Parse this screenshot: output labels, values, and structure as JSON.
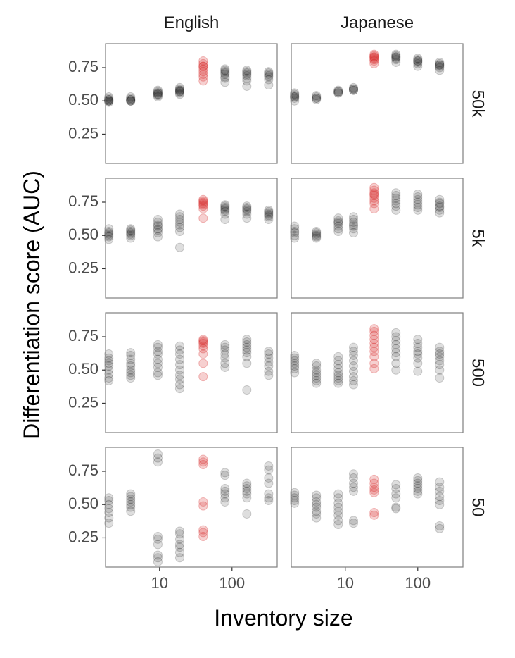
{
  "chart_data": {
    "type": "scatter",
    "xlabel": "Inventory size",
    "ylabel": "Differentiation score (AUC)",
    "x_scale": "log",
    "xlim": [
      1.8,
      420
    ],
    "ylim": [
      0.03,
      0.93
    ],
    "x_ticks": [
      10,
      100
    ],
    "x_tick_labels": [
      "10",
      "100"
    ],
    "y_ticks": [
      0.25,
      0.5,
      0.75
    ],
    "y_tick_labels": [
      "0.25",
      "0.50",
      "0.75"
    ],
    "columns": [
      "English",
      "Japanese"
    ],
    "rows": [
      "50k",
      "5k",
      "500",
      "50"
    ],
    "grid": false,
    "colors": {
      "highlight": "#d62728",
      "point": "#000000",
      "panel_border": "#7f7f7f"
    },
    "panels": [
      {
        "column": "English",
        "row": "50k",
        "points": [
          {
            "x": 2,
            "y": [
              0.49,
              0.5,
              0.51,
              0.52,
              0.53,
              0.5,
              0.51,
              0.5
            ]
          },
          {
            "x": 4,
            "y": [
              0.5,
              0.51,
              0.52,
              0.5,
              0.51,
              0.53,
              0.5
            ]
          },
          {
            "x": 9.5,
            "y": [
              0.54,
              0.55,
              0.56,
              0.57,
              0.58,
              0.56,
              0.55,
              0.53
            ]
          },
          {
            "x": 19,
            "y": [
              0.56,
              0.57,
              0.58,
              0.59,
              0.6,
              0.58,
              0.57,
              0.55
            ]
          },
          {
            "x": 40,
            "y": [
              0.65,
              0.68,
              0.7,
              0.72,
              0.74,
              0.76,
              0.78,
              0.8,
              0.76
            ],
            "highlight": true
          },
          {
            "x": 80,
            "y": [
              0.64,
              0.67,
              0.7,
              0.72,
              0.73,
              0.74,
              0.71,
              0.68
            ]
          },
          {
            "x": 160,
            "y": [
              0.61,
              0.65,
              0.69,
              0.71,
              0.72,
              0.73,
              0.7,
              0.67
            ]
          },
          {
            "x": 320,
            "y": [
              0.62,
              0.66,
              0.69,
              0.7,
              0.71,
              0.72,
              0.68
            ]
          }
        ]
      },
      {
        "column": "Japanese",
        "row": "50k",
        "points": [
          {
            "x": 2,
            "y": [
              0.5,
              0.52,
              0.53,
              0.54,
              0.55,
              0.56,
              0.53
            ]
          },
          {
            "x": 4,
            "y": [
              0.51,
              0.52,
              0.53,
              0.54,
              0.52
            ]
          },
          {
            "x": 8,
            "y": [
              0.56,
              0.57,
              0.58,
              0.57,
              0.56
            ]
          },
          {
            "x": 13,
            "y": [
              0.58,
              0.59,
              0.6,
              0.59,
              0.58
            ]
          },
          {
            "x": 25,
            "y": [
              0.78,
              0.8,
              0.81,
              0.82,
              0.83,
              0.84,
              0.85,
              0.83
            ],
            "highlight": true
          },
          {
            "x": 50,
            "y": [
              0.79,
              0.81,
              0.82,
              0.83,
              0.84,
              0.85,
              0.83
            ]
          },
          {
            "x": 100,
            "y": [
              0.76,
              0.78,
              0.79,
              0.8,
              0.81,
              0.82,
              0.8
            ]
          },
          {
            "x": 200,
            "y": [
              0.73,
              0.75,
              0.76,
              0.77,
              0.78,
              0.79,
              0.77
            ]
          }
        ]
      },
      {
        "column": "English",
        "row": "5k",
        "points": [
          {
            "x": 2,
            "y": [
              0.47,
              0.49,
              0.5,
              0.51,
              0.52,
              0.53,
              0.55
            ]
          },
          {
            "x": 4,
            "y": [
              0.48,
              0.5,
              0.51,
              0.52,
              0.53,
              0.54,
              0.55
            ]
          },
          {
            "x": 9.5,
            "y": [
              0.49,
              0.52,
              0.54,
              0.55,
              0.57,
              0.58,
              0.6,
              0.62
            ]
          },
          {
            "x": 19,
            "y": [
              0.41,
              0.53,
              0.56,
              0.58,
              0.6,
              0.62,
              0.64,
              0.66
            ]
          },
          {
            "x": 40,
            "y": [
              0.63,
              0.7,
              0.72,
              0.73,
              0.74,
              0.75,
              0.76,
              0.77
            ],
            "highlight": true
          },
          {
            "x": 80,
            "y": [
              0.62,
              0.66,
              0.68,
              0.69,
              0.7,
              0.71,
              0.72,
              0.73
            ]
          },
          {
            "x": 160,
            "y": [
              0.63,
              0.66,
              0.68,
              0.69,
              0.7,
              0.71,
              0.72
            ]
          },
          {
            "x": 320,
            "y": [
              0.62,
              0.64,
              0.65,
              0.66,
              0.67,
              0.68,
              0.69
            ]
          }
        ]
      },
      {
        "column": "Japanese",
        "row": "5k",
        "points": [
          {
            "x": 2,
            "y": [
              0.48,
              0.5,
              0.52,
              0.53,
              0.55,
              0.57
            ]
          },
          {
            "x": 4,
            "y": [
              0.48,
              0.49,
              0.5,
              0.51,
              0.52,
              0.53
            ]
          },
          {
            "x": 8,
            "y": [
              0.53,
              0.55,
              0.57,
              0.59,
              0.6,
              0.61,
              0.63
            ]
          },
          {
            "x": 13,
            "y": [
              0.52,
              0.55,
              0.57,
              0.58,
              0.6,
              0.62,
              0.64
            ]
          },
          {
            "x": 25,
            "y": [
              0.7,
              0.74,
              0.76,
              0.78,
              0.8,
              0.81,
              0.82,
              0.84,
              0.86
            ],
            "highlight": true
          },
          {
            "x": 50,
            "y": [
              0.69,
              0.72,
              0.74,
              0.76,
              0.78,
              0.8,
              0.82
            ]
          },
          {
            "x": 100,
            "y": [
              0.69,
              0.71,
              0.73,
              0.75,
              0.77,
              0.79,
              0.81
            ]
          },
          {
            "x": 200,
            "y": [
              0.67,
              0.69,
              0.71,
              0.72,
              0.74,
              0.75,
              0.77
            ]
          }
        ]
      },
      {
        "column": "English",
        "row": "500",
        "points": [
          {
            "x": 2,
            "y": [
              0.42,
              0.44,
              0.47,
              0.5,
              0.53,
              0.55,
              0.57,
              0.59,
              0.62
            ]
          },
          {
            "x": 4,
            "y": [
              0.44,
              0.46,
              0.48,
              0.5,
              0.53,
              0.55,
              0.58,
              0.61,
              0.63
            ]
          },
          {
            "x": 9.5,
            "y": [
              0.46,
              0.48,
              0.52,
              0.55,
              0.58,
              0.62,
              0.64,
              0.67,
              0.69
            ]
          },
          {
            "x": 19,
            "y": [
              0.36,
              0.39,
              0.43,
              0.46,
              0.5,
              0.54,
              0.58,
              0.62,
              0.65,
              0.68
            ]
          },
          {
            "x": 40,
            "y": [
              0.45,
              0.55,
              0.62,
              0.66,
              0.68,
              0.7,
              0.71,
              0.72,
              0.73
            ],
            "highlight": true
          },
          {
            "x": 80,
            "y": [
              0.52,
              0.55,
              0.59,
              0.62,
              0.65,
              0.67,
              0.69
            ]
          },
          {
            "x": 160,
            "y": [
              0.35,
              0.55,
              0.6,
              0.63,
              0.65,
              0.67,
              0.69,
              0.71,
              0.73
            ]
          },
          {
            "x": 320,
            "y": [
              0.46,
              0.49,
              0.53,
              0.56,
              0.59,
              0.62,
              0.64
            ]
          }
        ]
      },
      {
        "column": "Japanese",
        "row": "500",
        "points": [
          {
            "x": 2,
            "y": [
              0.48,
              0.51,
              0.53,
              0.55,
              0.57,
              0.59,
              0.61
            ]
          },
          {
            "x": 4,
            "y": [
              0.4,
              0.42,
              0.44,
              0.46,
              0.48,
              0.5,
              0.53,
              0.55
            ]
          },
          {
            "x": 8,
            "y": [
              0.4,
              0.42,
              0.44,
              0.46,
              0.48,
              0.51,
              0.54,
              0.57,
              0.6
            ]
          },
          {
            "x": 13,
            "y": [
              0.39,
              0.42,
              0.45,
              0.49,
              0.53,
              0.57,
              0.61,
              0.64,
              0.67
            ]
          },
          {
            "x": 25,
            "y": [
              0.51,
              0.55,
              0.6,
              0.64,
              0.67,
              0.7,
              0.73,
              0.76,
              0.79,
              0.81
            ],
            "highlight": true
          },
          {
            "x": 50,
            "y": [
              0.5,
              0.55,
              0.6,
              0.63,
              0.66,
              0.69,
              0.72,
              0.75,
              0.78
            ]
          },
          {
            "x": 100,
            "y": [
              0.49,
              0.55,
              0.59,
              0.62,
              0.64,
              0.67,
              0.7,
              0.73
            ]
          },
          {
            "x": 200,
            "y": [
              0.44,
              0.5,
              0.54,
              0.57,
              0.6,
              0.62,
              0.64,
              0.67
            ]
          }
        ]
      },
      {
        "column": "English",
        "row": "50",
        "points": [
          {
            "x": 2,
            "y": [
              0.36,
              0.4,
              0.44,
              0.47,
              0.5,
              0.53,
              0.55
            ]
          },
          {
            "x": 4,
            "y": [
              0.45,
              0.48,
              0.5,
              0.52,
              0.54,
              0.56,
              0.58
            ]
          },
          {
            "x": 9.5,
            "y": [
              0.07,
              0.1,
              0.12,
              0.2,
              0.24,
              0.26,
              0.82,
              0.85,
              0.88
            ]
          },
          {
            "x": 19,
            "y": [
              0.1,
              0.14,
              0.18,
              0.2,
              0.24,
              0.28,
              0.3
            ]
          },
          {
            "x": 40,
            "y": [
              0.26,
              0.29,
              0.31,
              0.49,
              0.52,
              0.8,
              0.82,
              0.84
            ],
            "highlight": true
          },
          {
            "x": 80,
            "y": [
              0.52,
              0.55,
              0.58,
              0.6,
              0.62,
              0.72,
              0.74
            ]
          },
          {
            "x": 160,
            "y": [
              0.43,
              0.55,
              0.58,
              0.6,
              0.62,
              0.64,
              0.66
            ]
          },
          {
            "x": 320,
            "y": [
              0.53,
              0.55,
              0.58,
              0.66,
              0.7,
              0.76,
              0.79
            ]
          }
        ]
      },
      {
        "column": "Japanese",
        "row": "50",
        "points": [
          {
            "x": 2,
            "y": [
              0.51,
              0.53,
              0.55,
              0.57,
              0.59
            ]
          },
          {
            "x": 4,
            "y": [
              0.4,
              0.43,
              0.45,
              0.48,
              0.5,
              0.52,
              0.55,
              0.57
            ]
          },
          {
            "x": 8,
            "y": [
              0.35,
              0.38,
              0.42,
              0.45,
              0.48,
              0.51,
              0.55,
              0.58
            ]
          },
          {
            "x": 13,
            "y": [
              0.36,
              0.38,
              0.6,
              0.63,
              0.66,
              0.7,
              0.73
            ]
          },
          {
            "x": 25,
            "y": [
              0.42,
              0.44,
              0.59,
              0.61,
              0.63,
              0.66,
              0.69
            ],
            "highlight": true
          },
          {
            "x": 50,
            "y": [
              0.47,
              0.48,
              0.55,
              0.58,
              0.62,
              0.65
            ]
          },
          {
            "x": 100,
            "y": [
              0.58,
              0.6,
              0.62,
              0.64,
              0.66,
              0.68,
              0.7
            ]
          },
          {
            "x": 200,
            "y": [
              0.32,
              0.34,
              0.5,
              0.53,
              0.56,
              0.6,
              0.63,
              0.67
            ]
          }
        ]
      }
    ]
  }
}
